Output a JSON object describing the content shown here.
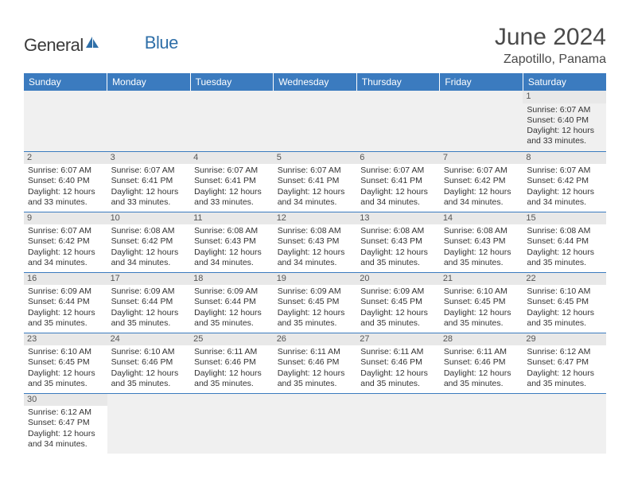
{
  "logo": {
    "general": "General",
    "blue": "Blue"
  },
  "title": {
    "month": "June 2024",
    "location": "Zapotillo, Panama"
  },
  "colors": {
    "header_bg": "#3b7bbf",
    "header_text": "#ffffff",
    "daynum_bg": "#e8e8e8",
    "border": "#3b7bbf",
    "logo_blue": "#2f6fa8",
    "logo_gray": "#3a3a3a"
  },
  "weekdays": [
    "Sunday",
    "Monday",
    "Tuesday",
    "Wednesday",
    "Thursday",
    "Friday",
    "Saturday"
  ],
  "weeks": [
    [
      null,
      null,
      null,
      null,
      null,
      null,
      {
        "n": "1",
        "sr": "Sunrise: 6:07 AM",
        "ss": "Sunset: 6:40 PM",
        "d1": "Daylight: 12 hours",
        "d2": "and 33 minutes."
      }
    ],
    [
      {
        "n": "2",
        "sr": "Sunrise: 6:07 AM",
        "ss": "Sunset: 6:40 PM",
        "d1": "Daylight: 12 hours",
        "d2": "and 33 minutes."
      },
      {
        "n": "3",
        "sr": "Sunrise: 6:07 AM",
        "ss": "Sunset: 6:41 PM",
        "d1": "Daylight: 12 hours",
        "d2": "and 33 minutes."
      },
      {
        "n": "4",
        "sr": "Sunrise: 6:07 AM",
        "ss": "Sunset: 6:41 PM",
        "d1": "Daylight: 12 hours",
        "d2": "and 33 minutes."
      },
      {
        "n": "5",
        "sr": "Sunrise: 6:07 AM",
        "ss": "Sunset: 6:41 PM",
        "d1": "Daylight: 12 hours",
        "d2": "and 34 minutes."
      },
      {
        "n": "6",
        "sr": "Sunrise: 6:07 AM",
        "ss": "Sunset: 6:41 PM",
        "d1": "Daylight: 12 hours",
        "d2": "and 34 minutes."
      },
      {
        "n": "7",
        "sr": "Sunrise: 6:07 AM",
        "ss": "Sunset: 6:42 PM",
        "d1": "Daylight: 12 hours",
        "d2": "and 34 minutes."
      },
      {
        "n": "8",
        "sr": "Sunrise: 6:07 AM",
        "ss": "Sunset: 6:42 PM",
        "d1": "Daylight: 12 hours",
        "d2": "and 34 minutes."
      }
    ],
    [
      {
        "n": "9",
        "sr": "Sunrise: 6:07 AM",
        "ss": "Sunset: 6:42 PM",
        "d1": "Daylight: 12 hours",
        "d2": "and 34 minutes."
      },
      {
        "n": "10",
        "sr": "Sunrise: 6:08 AM",
        "ss": "Sunset: 6:42 PM",
        "d1": "Daylight: 12 hours",
        "d2": "and 34 minutes."
      },
      {
        "n": "11",
        "sr": "Sunrise: 6:08 AM",
        "ss": "Sunset: 6:43 PM",
        "d1": "Daylight: 12 hours",
        "d2": "and 34 minutes."
      },
      {
        "n": "12",
        "sr": "Sunrise: 6:08 AM",
        "ss": "Sunset: 6:43 PM",
        "d1": "Daylight: 12 hours",
        "d2": "and 34 minutes."
      },
      {
        "n": "13",
        "sr": "Sunrise: 6:08 AM",
        "ss": "Sunset: 6:43 PM",
        "d1": "Daylight: 12 hours",
        "d2": "and 35 minutes."
      },
      {
        "n": "14",
        "sr": "Sunrise: 6:08 AM",
        "ss": "Sunset: 6:43 PM",
        "d1": "Daylight: 12 hours",
        "d2": "and 35 minutes."
      },
      {
        "n": "15",
        "sr": "Sunrise: 6:08 AM",
        "ss": "Sunset: 6:44 PM",
        "d1": "Daylight: 12 hours",
        "d2": "and 35 minutes."
      }
    ],
    [
      {
        "n": "16",
        "sr": "Sunrise: 6:09 AM",
        "ss": "Sunset: 6:44 PM",
        "d1": "Daylight: 12 hours",
        "d2": "and 35 minutes."
      },
      {
        "n": "17",
        "sr": "Sunrise: 6:09 AM",
        "ss": "Sunset: 6:44 PM",
        "d1": "Daylight: 12 hours",
        "d2": "and 35 minutes."
      },
      {
        "n": "18",
        "sr": "Sunrise: 6:09 AM",
        "ss": "Sunset: 6:44 PM",
        "d1": "Daylight: 12 hours",
        "d2": "and 35 minutes."
      },
      {
        "n": "19",
        "sr": "Sunrise: 6:09 AM",
        "ss": "Sunset: 6:45 PM",
        "d1": "Daylight: 12 hours",
        "d2": "and 35 minutes."
      },
      {
        "n": "20",
        "sr": "Sunrise: 6:09 AM",
        "ss": "Sunset: 6:45 PM",
        "d1": "Daylight: 12 hours",
        "d2": "and 35 minutes."
      },
      {
        "n": "21",
        "sr": "Sunrise: 6:10 AM",
        "ss": "Sunset: 6:45 PM",
        "d1": "Daylight: 12 hours",
        "d2": "and 35 minutes."
      },
      {
        "n": "22",
        "sr": "Sunrise: 6:10 AM",
        "ss": "Sunset: 6:45 PM",
        "d1": "Daylight: 12 hours",
        "d2": "and 35 minutes."
      }
    ],
    [
      {
        "n": "23",
        "sr": "Sunrise: 6:10 AM",
        "ss": "Sunset: 6:45 PM",
        "d1": "Daylight: 12 hours",
        "d2": "and 35 minutes."
      },
      {
        "n": "24",
        "sr": "Sunrise: 6:10 AM",
        "ss": "Sunset: 6:46 PM",
        "d1": "Daylight: 12 hours",
        "d2": "and 35 minutes."
      },
      {
        "n": "25",
        "sr": "Sunrise: 6:11 AM",
        "ss": "Sunset: 6:46 PM",
        "d1": "Daylight: 12 hours",
        "d2": "and 35 minutes."
      },
      {
        "n": "26",
        "sr": "Sunrise: 6:11 AM",
        "ss": "Sunset: 6:46 PM",
        "d1": "Daylight: 12 hours",
        "d2": "and 35 minutes."
      },
      {
        "n": "27",
        "sr": "Sunrise: 6:11 AM",
        "ss": "Sunset: 6:46 PM",
        "d1": "Daylight: 12 hours",
        "d2": "and 35 minutes."
      },
      {
        "n": "28",
        "sr": "Sunrise: 6:11 AM",
        "ss": "Sunset: 6:46 PM",
        "d1": "Daylight: 12 hours",
        "d2": "and 35 minutes."
      },
      {
        "n": "29",
        "sr": "Sunrise: 6:12 AM",
        "ss": "Sunset: 6:47 PM",
        "d1": "Daylight: 12 hours",
        "d2": "and 35 minutes."
      }
    ],
    [
      {
        "n": "30",
        "sr": "Sunrise: 6:12 AM",
        "ss": "Sunset: 6:47 PM",
        "d1": "Daylight: 12 hours",
        "d2": "and 34 minutes."
      },
      null,
      null,
      null,
      null,
      null,
      null
    ]
  ]
}
